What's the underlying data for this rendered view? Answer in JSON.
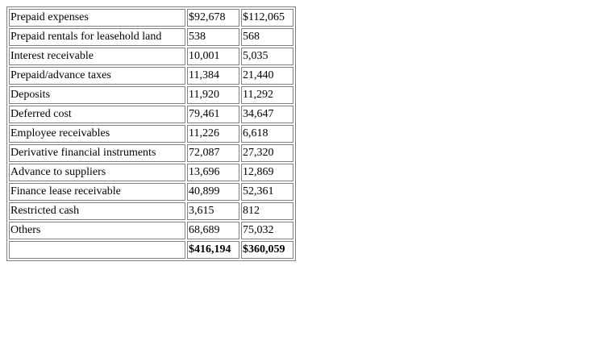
{
  "table": {
    "rows": [
      {
        "label": "Prepaid expenses",
        "a": "$92,678",
        "b": "$112,065"
      },
      {
        "label": "Prepaid rentals for leasehold land",
        "a": "538",
        "b": "568"
      },
      {
        "label": "Interest receivable",
        "a": "10,001",
        "b": "5,035"
      },
      {
        "label": "Prepaid/advance taxes",
        "a": "11,384",
        "b": "21,440"
      },
      {
        "label": "Deposits",
        "a": "11,920",
        "b": "11,292"
      },
      {
        "label": "Deferred cost",
        "a": "79,461",
        "b": "34,647"
      },
      {
        "label": "Employee receivables",
        "a": "11,226",
        "b": "6,618"
      },
      {
        "label": "Derivative financial instruments",
        "a": "72,087",
        "b": "27,320"
      },
      {
        "label": "Advance to suppliers",
        "a": "13,696",
        "b": "12,869"
      },
      {
        "label": "Finance lease receivable",
        "a": "40,899",
        "b": "52,361"
      },
      {
        "label": "Restricted cash",
        "a": "3,615",
        "b": "812"
      },
      {
        "label": "Others",
        "a": "68,689",
        "b": "75,032"
      }
    ],
    "total": {
      "label": "",
      "a": "$416,194",
      "b": "$360,059"
    }
  }
}
